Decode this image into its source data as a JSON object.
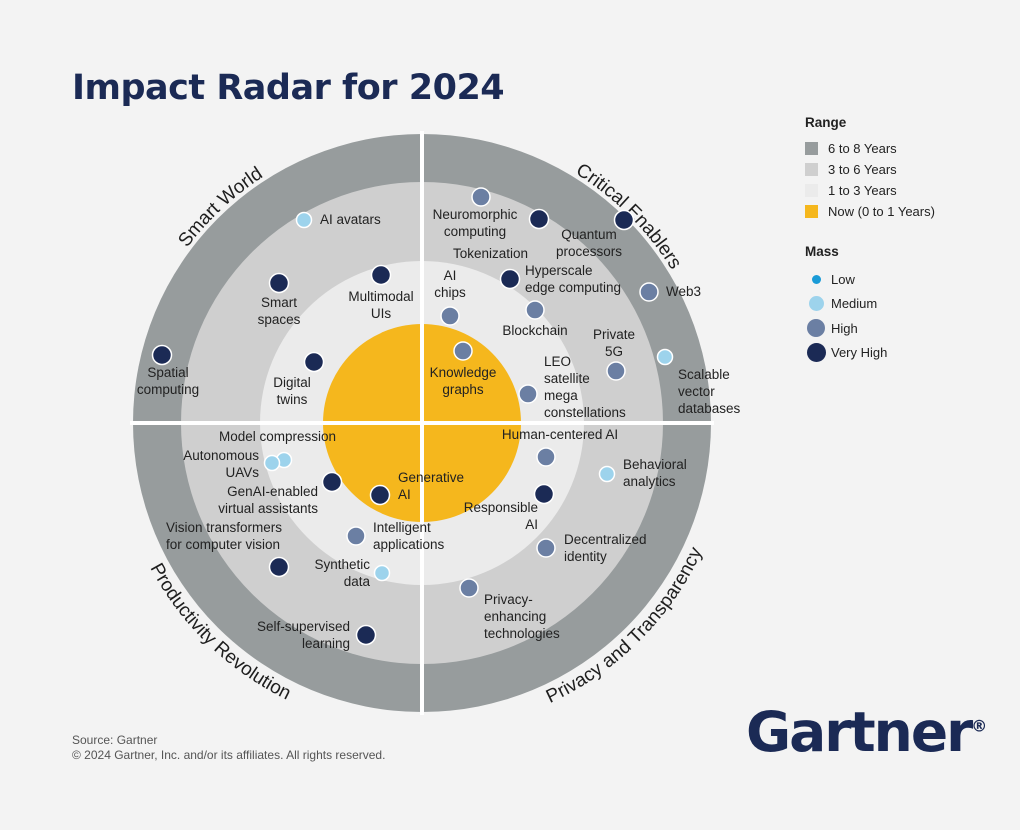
{
  "title": "Impact Radar for 2024",
  "legend": {
    "range_title": "Range",
    "ranges": [
      {
        "label": "6 to 8 Years",
        "color": "#979c9d"
      },
      {
        "label": "3 to 6 Years",
        "color": "#cfcfcf"
      },
      {
        "label": "1 to 3 Years",
        "color": "#ebebeb"
      },
      {
        "label": "Now (0 to 1 Years)",
        "color": "#f5b71d"
      }
    ],
    "mass_title": "Mass",
    "masses": [
      {
        "label": "Low",
        "color": "#1a9bd7"
      },
      {
        "label": "Medium",
        "color": "#9dd3ec"
      },
      {
        "label": "High",
        "color": "#6b7fa3"
      },
      {
        "label": "Very High",
        "color": "#1b2a55"
      }
    ]
  },
  "themes": [
    {
      "name": "Smart World",
      "items": [
        {
          "name": "AI avatars",
          "range": "3 to 6 Years",
          "mass": "Medium"
        },
        {
          "name": "Smart\nspaces",
          "range": "3 to 6 Years",
          "mass": "Very High"
        },
        {
          "name": "Spatial\ncomputing",
          "range": "6 to 8 Years",
          "mass": "Very High"
        },
        {
          "name": "Multimodal\nUIs",
          "range": "1 to 3 Years",
          "mass": "Very High"
        },
        {
          "name": "Digital\ntwins",
          "range": "1 to 3 Years",
          "mass": "Very High"
        }
      ]
    },
    {
      "name": "Critical Enablers",
      "items": [
        {
          "name": "Neuromorphic\ncomputing",
          "range": "3 to 6 Years",
          "mass": "High"
        },
        {
          "name": "Tokenization",
          "range": "3 to 6 Years",
          "mass": "Very High"
        },
        {
          "name": "Quantum\nprocessors",
          "range": "6 to 8 Years",
          "mass": "Very High"
        },
        {
          "name": "Hyperscale\nedge computing",
          "range": "3 to 6 Years",
          "mass": "Very High"
        },
        {
          "name": "AI\nchips",
          "range": "1 to 3 Years",
          "mass": "High"
        },
        {
          "name": "Blockchain",
          "range": "3 to 6 Years",
          "mass": "High"
        },
        {
          "name": "Web3",
          "range": "6 to 8 Years",
          "mass": "High"
        },
        {
          "name": "Private\n5G",
          "range": "3 to 6 Years",
          "mass": "High"
        },
        {
          "name": "Scalable\nvector\ndatabases",
          "range": "6 to 8 Years",
          "mass": "Medium"
        },
        {
          "name": "Knowledge\ngraphs",
          "range": "Now (0 to 1 Years)",
          "mass": "High"
        },
        {
          "name": "LEO\nsatellite\nmega\nconstellations",
          "range": "1 to 3 Years",
          "mass": "High"
        }
      ]
    },
    {
      "name": "Privacy and Transparency",
      "items": [
        {
          "name": "Human-centered  AI",
          "range": "1 to 3 Years",
          "mass": "High"
        },
        {
          "name": "Behavioral\nanalytics",
          "range": "3 to 6 Years",
          "mass": "Medium"
        },
        {
          "name": "Responsible\nAI",
          "range": "1 to 3 Years",
          "mass": "Very High"
        },
        {
          "name": "Decentralized\nidentity",
          "range": "3 to 6 Years",
          "mass": "High"
        },
        {
          "name": "Privacy-\nenhancing\ntechnologies",
          "range": "3 to 6 Years",
          "mass": "High"
        }
      ]
    },
    {
      "name": "Productivity Revolution",
      "items": [
        {
          "name": "Model compression",
          "range": "1 to 3 Years",
          "mass": "Medium"
        },
        {
          "name": "Autonomous\nUAVs",
          "range": "1 to 3 Years",
          "mass": "Medium"
        },
        {
          "name": "GenAI-enabled\nvirtual assistants",
          "range": "1 to 3 Years",
          "mass": "Very High"
        },
        {
          "name": "Generative\nAI",
          "range": "Now (0 to 1 Years)",
          "mass": "Very High"
        },
        {
          "name": "Vision transformers\nfor computer vision",
          "range": "3 to 6 Years",
          "mass": "Very High"
        },
        {
          "name": "Intelligent\napplications",
          "range": "1 to 3 Years",
          "mass": "High"
        },
        {
          "name": "Synthetic\ndata",
          "range": "1 to 3 Years",
          "mass": "Medium"
        },
        {
          "name": "Self-supervised\nlearning",
          "range": "3 to 6 Years",
          "mass": "Very High"
        }
      ]
    }
  ],
  "footer": {
    "source": "Source: Gartner",
    "copyright": "© 2024 Gartner, Inc. and/or its affiliates. All rights reserved."
  },
  "logo": "Gartner"
}
